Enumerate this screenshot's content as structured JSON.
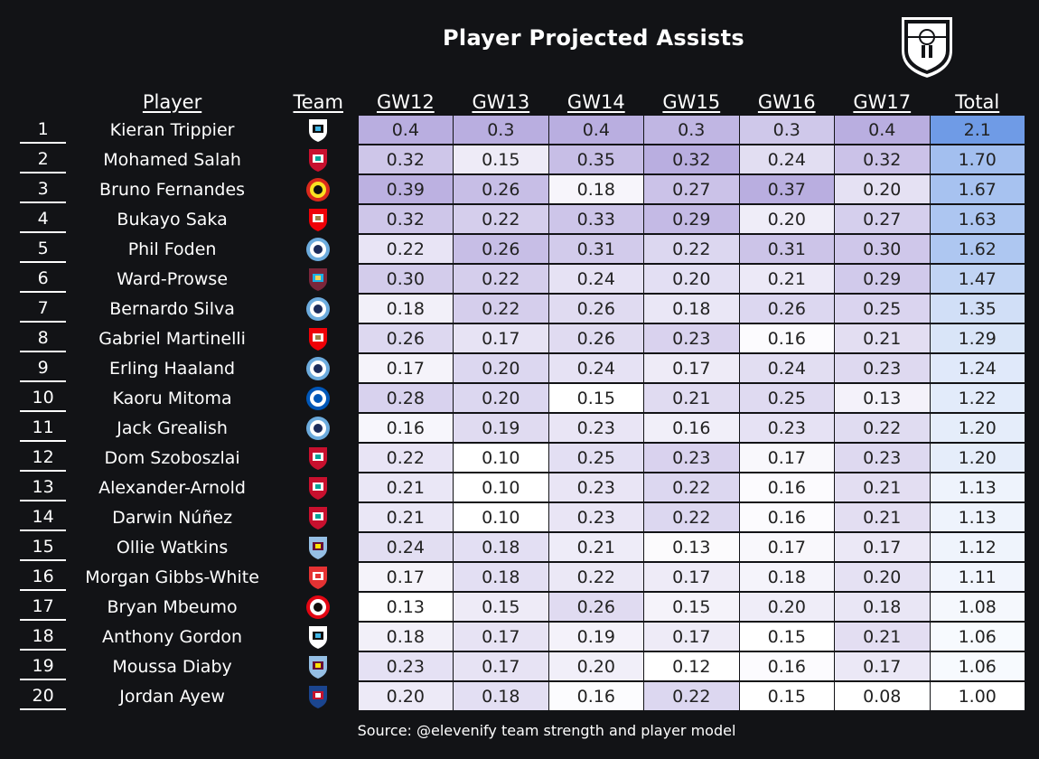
{
  "title": "Player Projected Assists",
  "source": "Source: @elevenify team strength and player model",
  "colors": {
    "background": "#121316",
    "gw_low": "#ffffff",
    "gw_high": "#b9aee0",
    "total_low": "#ffffff",
    "total_high": "#6f9be6"
  },
  "chart_data": {
    "type": "table",
    "title": "Player Projected Assists",
    "columns": [
      "Player",
      "Team",
      "GW12",
      "GW13",
      "GW14",
      "GW15",
      "GW16",
      "GW17",
      "Total"
    ],
    "rows": [
      {
        "rank": "1",
        "player": "Kieran Trippier",
        "team": "newcastle-crest-icon",
        "gw": [
          "0.4",
          "0.3",
          "0.4",
          "0.3",
          "0.3",
          "0.4"
        ],
        "total": "2.1"
      },
      {
        "rank": "2",
        "player": "Mohamed Salah",
        "team": "liverpool-crest-icon",
        "gw": [
          "0.32",
          "0.15",
          "0.35",
          "0.32",
          "0.24",
          "0.32"
        ],
        "total": "1.70"
      },
      {
        "rank": "3",
        "player": "Bruno Fernandes",
        "team": "man-utd-crest-icon",
        "gw": [
          "0.39",
          "0.26",
          "0.18",
          "0.27",
          "0.37",
          "0.20"
        ],
        "total": "1.67"
      },
      {
        "rank": "4",
        "player": "Bukayo Saka",
        "team": "arsenal-crest-icon",
        "gw": [
          "0.32",
          "0.22",
          "0.33",
          "0.29",
          "0.20",
          "0.27"
        ],
        "total": "1.63"
      },
      {
        "rank": "5",
        "player": "Phil Foden",
        "team": "man-city-crest-icon",
        "gw": [
          "0.22",
          "0.26",
          "0.31",
          "0.22",
          "0.31",
          "0.30"
        ],
        "total": "1.62"
      },
      {
        "rank": "6",
        "player": "Ward-Prowse",
        "team": "west-ham-crest-icon",
        "gw": [
          "0.30",
          "0.22",
          "0.24",
          "0.20",
          "0.21",
          "0.29"
        ],
        "total": "1.47"
      },
      {
        "rank": "7",
        "player": "Bernardo Silva",
        "team": "man-city-crest-icon",
        "gw": [
          "0.18",
          "0.22",
          "0.26",
          "0.18",
          "0.26",
          "0.25"
        ],
        "total": "1.35"
      },
      {
        "rank": "8",
        "player": "Gabriel Martinelli",
        "team": "arsenal-crest-icon",
        "gw": [
          "0.26",
          "0.17",
          "0.26",
          "0.23",
          "0.16",
          "0.21"
        ],
        "total": "1.29"
      },
      {
        "rank": "9",
        "player": "Erling Haaland",
        "team": "man-city-crest-icon",
        "gw": [
          "0.17",
          "0.20",
          "0.24",
          "0.17",
          "0.24",
          "0.23"
        ],
        "total": "1.24"
      },
      {
        "rank": "10",
        "player": "Kaoru Mitoma",
        "team": "brighton-crest-icon",
        "gw": [
          "0.28",
          "0.20",
          "0.15",
          "0.21",
          "0.25",
          "0.13"
        ],
        "total": "1.22"
      },
      {
        "rank": "11",
        "player": "Jack Grealish",
        "team": "man-city-crest-icon",
        "gw": [
          "0.16",
          "0.19",
          "0.23",
          "0.16",
          "0.23",
          "0.22"
        ],
        "total": "1.20"
      },
      {
        "rank": "12",
        "player": "Dom Szoboszlai",
        "team": "liverpool-crest-icon",
        "gw": [
          "0.22",
          "0.10",
          "0.25",
          "0.23",
          "0.17",
          "0.23"
        ],
        "total": "1.20"
      },
      {
        "rank": "13",
        "player": "Alexander-Arnold",
        "team": "liverpool-crest-icon",
        "gw": [
          "0.21",
          "0.10",
          "0.23",
          "0.22",
          "0.16",
          "0.21"
        ],
        "total": "1.13"
      },
      {
        "rank": "14",
        "player": "Darwin Núñez",
        "team": "liverpool-crest-icon",
        "gw": [
          "0.21",
          "0.10",
          "0.23",
          "0.22",
          "0.16",
          "0.21"
        ],
        "total": "1.13"
      },
      {
        "rank": "15",
        "player": "Ollie Watkins",
        "team": "aston-villa-crest-icon",
        "gw": [
          "0.24",
          "0.18",
          "0.21",
          "0.13",
          "0.17",
          "0.17"
        ],
        "total": "1.12"
      },
      {
        "rank": "16",
        "player": "Morgan Gibbs-White",
        "team": "nottm-forest-crest-icon",
        "gw": [
          "0.17",
          "0.18",
          "0.22",
          "0.17",
          "0.18",
          "0.20"
        ],
        "total": "1.11"
      },
      {
        "rank": "17",
        "player": "Bryan Mbeumo",
        "team": "brentford-crest-icon",
        "gw": [
          "0.13",
          "0.15",
          "0.26",
          "0.15",
          "0.20",
          "0.18"
        ],
        "total": "1.08"
      },
      {
        "rank": "18",
        "player": "Anthony Gordon",
        "team": "newcastle-crest-icon",
        "gw": [
          "0.18",
          "0.17",
          "0.19",
          "0.17",
          "0.15",
          "0.21"
        ],
        "total": "1.06"
      },
      {
        "rank": "19",
        "player": "Moussa Diaby",
        "team": "aston-villa-crest-icon",
        "gw": [
          "0.23",
          "0.17",
          "0.20",
          "0.12",
          "0.16",
          "0.17"
        ],
        "total": "1.06"
      },
      {
        "rank": "20",
        "player": "Jordan Ayew",
        "team": "crystal-palace-crest-icon",
        "gw": [
          "0.20",
          "0.18",
          "0.16",
          "0.22",
          "0.15",
          "0.08"
        ],
        "total": "1.00"
      }
    ]
  }
}
